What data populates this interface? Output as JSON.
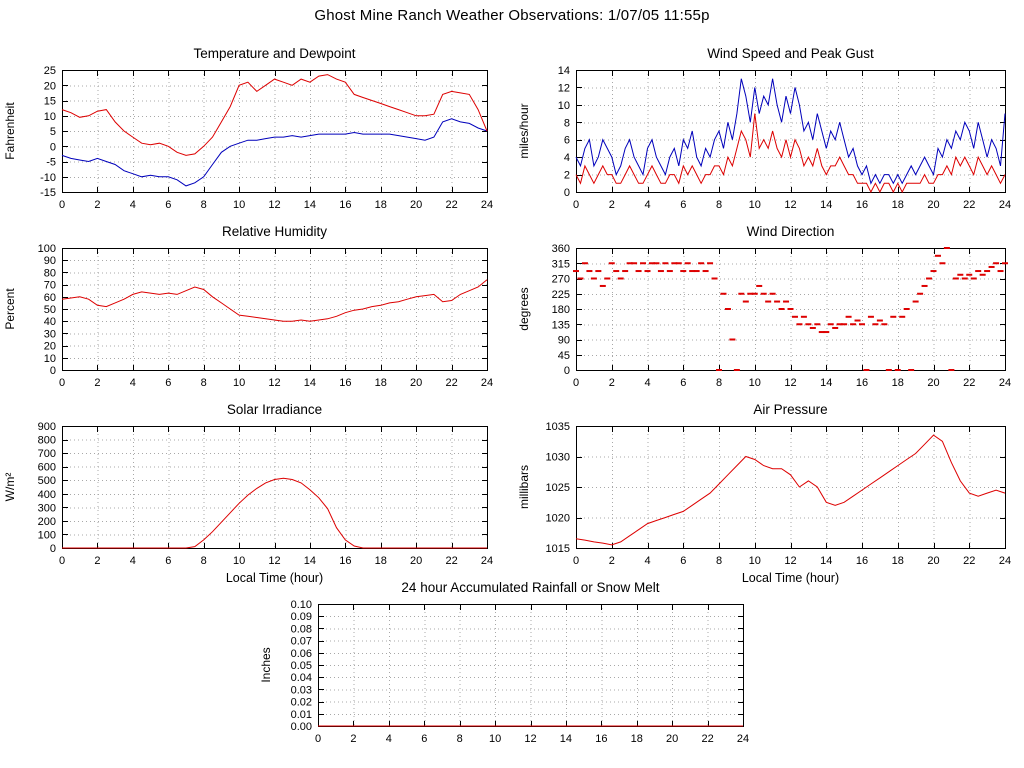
{
  "page": {
    "title": "Ghost Mine Ranch Weather Observations: 1/07/05 11:55p"
  },
  "chart_data": [
    {
      "id": "temperature",
      "type": "line",
      "title": "Temperature and Dewpoint",
      "ylabel": "Fahrenheit",
      "xlabel": "",
      "xlim": [
        0,
        24
      ],
      "xticks": [
        0,
        2,
        4,
        6,
        8,
        10,
        12,
        14,
        16,
        18,
        20,
        22,
        24
      ],
      "ylim": [
        -15,
        25
      ],
      "yticks": [
        -15,
        -10,
        -5,
        0,
        5,
        10,
        15,
        20,
        25
      ],
      "ydecimals": 0,
      "grid": true,
      "legend": "none",
      "series": [
        {
          "name": "Dewpoint",
          "color": "#0000bb",
          "type": "line",
          "x_start": 0,
          "x_step": 0.5,
          "values": [
            -3,
            -4,
            -4.5,
            -5,
            -4,
            -5,
            -6,
            -8,
            -9,
            -10,
            -9.5,
            -10,
            -10,
            -11,
            -13,
            -12,
            -10,
            -6,
            -2,
            0,
            1,
            2,
            2,
            2.5,
            3,
            3,
            3.5,
            3,
            3.5,
            4,
            4,
            4,
            4,
            4.5,
            4,
            4,
            4,
            4,
            3.5,
            3,
            2.5,
            2,
            3,
            8,
            9,
            8,
            7.5,
            6,
            5
          ]
        },
        {
          "name": "Temperature",
          "color": "#dd0000",
          "type": "line",
          "x_start": 0,
          "x_step": 0.5,
          "values": [
            12,
            11,
            9.5,
            10,
            11.5,
            12,
            8,
            5,
            3,
            1,
            0.5,
            1,
            0,
            -2,
            -3,
            -2.5,
            0,
            3,
            8,
            13,
            20,
            21,
            18,
            20,
            22,
            21,
            20,
            22,
            21,
            23,
            23.5,
            22,
            21,
            17,
            16,
            15,
            14,
            13,
            12,
            11,
            10,
            10,
            10.5,
            17,
            18,
            17.5,
            17,
            12,
            5
          ]
        }
      ]
    },
    {
      "id": "wind-speed",
      "type": "line",
      "title": "Wind Speed and Peak Gust",
      "ylabel": "miles/hour",
      "xlabel": "",
      "xlim": [
        0,
        24
      ],
      "xticks": [
        0,
        2,
        4,
        6,
        8,
        10,
        12,
        14,
        16,
        18,
        20,
        22,
        24
      ],
      "ylim": [
        0,
        14
      ],
      "yticks": [
        0,
        2,
        4,
        6,
        8,
        10,
        12,
        14
      ],
      "ydecimals": 0,
      "grid": true,
      "legend": "none",
      "series": [
        {
          "name": "Peak Gust",
          "color": "#0000bb",
          "type": "line",
          "x_start": 0,
          "x_step": 0.25,
          "values": [
            4,
            3,
            5,
            6,
            3,
            4,
            6,
            5,
            4,
            2,
            3,
            5,
            6,
            4,
            3,
            2,
            5,
            6,
            4,
            3,
            2,
            4,
            5,
            3,
            6,
            5,
            7,
            4,
            3,
            5,
            4,
            6,
            7,
            5,
            8,
            6,
            9,
            13,
            11,
            8,
            12,
            9,
            11,
            10,
            13,
            10,
            8,
            11,
            9,
            12,
            10,
            7,
            8,
            6,
            9,
            7,
            5,
            7,
            6,
            8,
            6,
            4,
            5,
            3,
            2,
            3,
            1,
            2,
            1,
            2,
            2,
            1,
            2,
            1,
            2,
            3,
            2,
            3,
            4,
            3,
            2,
            5,
            4,
            6,
            5,
            7,
            6,
            8,
            7,
            5,
            8,
            6,
            4,
            6,
            5,
            3,
            9
          ]
        },
        {
          "name": "Wind Speed",
          "color": "#dd0000",
          "type": "line",
          "x_start": 0,
          "x_step": 0.25,
          "values": [
            2,
            1,
            3,
            2,
            1,
            2,
            3,
            2,
            2,
            1,
            1,
            2,
            3,
            2,
            1,
            1,
            2,
            3,
            2,
            1,
            1,
            2,
            2,
            1,
            3,
            2,
            3,
            2,
            1,
            2,
            2,
            3,
            3,
            2,
            4,
            3,
            5,
            7,
            6,
            4,
            9,
            5,
            6,
            5,
            7,
            5,
            4,
            6,
            4,
            6,
            5,
            3,
            4,
            3,
            5,
            3,
            2,
            3,
            3,
            4,
            3,
            2,
            2,
            1,
            1,
            1,
            0,
            1,
            0,
            1,
            1,
            0,
            1,
            0,
            1,
            1,
            1,
            1,
            2,
            1,
            1,
            2,
            2,
            3,
            2,
            4,
            3,
            4,
            3,
            2,
            4,
            3,
            2,
            3,
            2,
            1,
            2
          ]
        }
      ]
    },
    {
      "id": "humidity",
      "type": "line",
      "title": "Relative Humidity",
      "ylabel": "Percent",
      "xlabel": "",
      "xlim": [
        0,
        24
      ],
      "xticks": [
        0,
        2,
        4,
        6,
        8,
        10,
        12,
        14,
        16,
        18,
        20,
        22,
        24
      ],
      "ylim": [
        0,
        100
      ],
      "yticks": [
        0,
        10,
        20,
        30,
        40,
        50,
        60,
        70,
        80,
        90,
        100
      ],
      "ydecimals": 0,
      "grid": true,
      "legend": "none",
      "series": [
        {
          "name": "Relative Humidity",
          "color": "#dd0000",
          "type": "line",
          "x_start": 0,
          "x_step": 0.5,
          "values": [
            58,
            59,
            60,
            58,
            53,
            52,
            55,
            58,
            62,
            64,
            63,
            62,
            63,
            62,
            65,
            68,
            66,
            60,
            55,
            50,
            45,
            44,
            43,
            42,
            41,
            40,
            40,
            41,
            40,
            41,
            42,
            44,
            47,
            49,
            50,
            52,
            53,
            55,
            56,
            58,
            60,
            61,
            62,
            56,
            57,
            62,
            65,
            68,
            74
          ]
        }
      ]
    },
    {
      "id": "wind-direction",
      "type": "scatter",
      "title": "Wind Direction",
      "ylabel": "degrees",
      "xlabel": "",
      "xlim": [
        0,
        24
      ],
      "xticks": [
        0,
        2,
        4,
        6,
        8,
        10,
        12,
        14,
        16,
        18,
        20,
        22,
        24
      ],
      "ylim": [
        0,
        360
      ],
      "yticks": [
        0,
        45,
        90,
        135,
        180,
        225,
        270,
        315,
        360
      ],
      "ydecimals": 0,
      "grid": true,
      "legend": "none",
      "series": [
        {
          "name": "Wind Direction",
          "color": "#dd0000",
          "type": "points",
          "x_start": 0,
          "x_step": 0.25,
          "values": [
            292,
            270,
            315,
            292,
            270,
            292,
            248,
            270,
            315,
            292,
            270,
            292,
            315,
            315,
            292,
            315,
            292,
            315,
            315,
            292,
            315,
            292,
            315,
            315,
            292,
            315,
            292,
            292,
            315,
            292,
            315,
            270,
            0,
            225,
            180,
            90,
            0,
            225,
            202,
            225,
            225,
            248,
            225,
            202,
            225,
            202,
            180,
            202,
            180,
            157,
            135,
            157,
            135,
            124,
            135,
            112,
            112,
            135,
            124,
            135,
            135,
            157,
            135,
            146,
            135,
            0,
            157,
            135,
            146,
            135,
            0,
            157,
            0,
            157,
            180,
            0,
            202,
            225,
            248,
            270,
            292,
            337,
            315,
            360,
            0,
            270,
            281,
            270,
            281,
            270,
            292,
            281,
            292,
            304,
            315,
            292,
            315
          ]
        }
      ]
    },
    {
      "id": "solar",
      "type": "line",
      "title": "Solar Irradiance",
      "ylabel": "W/m²",
      "xlabel": "Local Time (hour)",
      "xlim": [
        0,
        24
      ],
      "xticks": [
        0,
        2,
        4,
        6,
        8,
        10,
        12,
        14,
        16,
        18,
        20,
        22,
        24
      ],
      "ylim": [
        0,
        900
      ],
      "yticks": [
        0,
        100,
        200,
        300,
        400,
        500,
        600,
        700,
        800,
        900
      ],
      "ydecimals": 0,
      "grid": true,
      "legend": "none",
      "series": [
        {
          "name": "Solar Irradiance",
          "color": "#dd0000",
          "type": "line",
          "x_start": 0,
          "x_step": 0.5,
          "values": [
            0,
            0,
            0,
            0,
            0,
            0,
            0,
            0,
            0,
            0,
            0,
            0,
            0,
            0,
            0,
            10,
            60,
            120,
            190,
            260,
            330,
            390,
            440,
            480,
            505,
            515,
            505,
            480,
            430,
            370,
            290,
            150,
            60,
            15,
            0,
            0,
            0,
            0,
            0,
            0,
            0,
            0,
            0,
            0,
            0,
            0,
            0,
            0,
            0
          ]
        }
      ]
    },
    {
      "id": "pressure",
      "type": "line",
      "title": "Air Pressure",
      "ylabel": "millibars",
      "xlabel": "Local Time (hour)",
      "xlim": [
        0,
        24
      ],
      "xticks": [
        0,
        2,
        4,
        6,
        8,
        10,
        12,
        14,
        16,
        18,
        20,
        22,
        24
      ],
      "ylim": [
        1015,
        1035
      ],
      "yticks": [
        1015,
        1020,
        1025,
        1030,
        1035
      ],
      "ydecimals": 0,
      "grid": true,
      "legend": "none",
      "series": [
        {
          "name": "Air Pressure",
          "color": "#dd0000",
          "type": "line",
          "x_start": 0,
          "x_step": 0.5,
          "values": [
            1016.5,
            1016.3,
            1016,
            1015.8,
            1015.5,
            1016,
            1017,
            1018,
            1019,
            1019.5,
            1020,
            1020.5,
            1021,
            1022,
            1023,
            1024,
            1025.5,
            1027,
            1028.5,
            1030,
            1029.5,
            1028.5,
            1028,
            1028,
            1027,
            1025,
            1026,
            1025,
            1022.5,
            1022,
            1022.5,
            1023.5,
            1024.5,
            1025.5,
            1026.5,
            1027.5,
            1028.5,
            1029.5,
            1030.5,
            1032,
            1033.5,
            1032.5,
            1029,
            1026,
            1024,
            1023.5,
            1024,
            1024.5,
            1024
          ]
        }
      ]
    },
    {
      "id": "rainfall",
      "type": "line",
      "title": "24 hour Accumulated Rainfall or Snow Melt",
      "ylabel": "Inches",
      "xlabel": "",
      "xlim": [
        0,
        24
      ],
      "xticks": [
        0,
        2,
        4,
        6,
        8,
        10,
        12,
        14,
        16,
        18,
        20,
        22,
        24
      ],
      "ylim": [
        0,
        0.1
      ],
      "yticks": [
        0,
        0.01,
        0.02,
        0.03,
        0.04,
        0.05,
        0.06,
        0.07,
        0.08,
        0.09,
        0.1
      ],
      "ydecimals": 2,
      "grid": true,
      "legend": "none",
      "series": [
        {
          "name": "Accumulated Rainfall",
          "color": "#dd0000",
          "type": "line",
          "x_start": 0,
          "x_step": 24,
          "values": [
            0,
            0
          ]
        }
      ]
    }
  ]
}
